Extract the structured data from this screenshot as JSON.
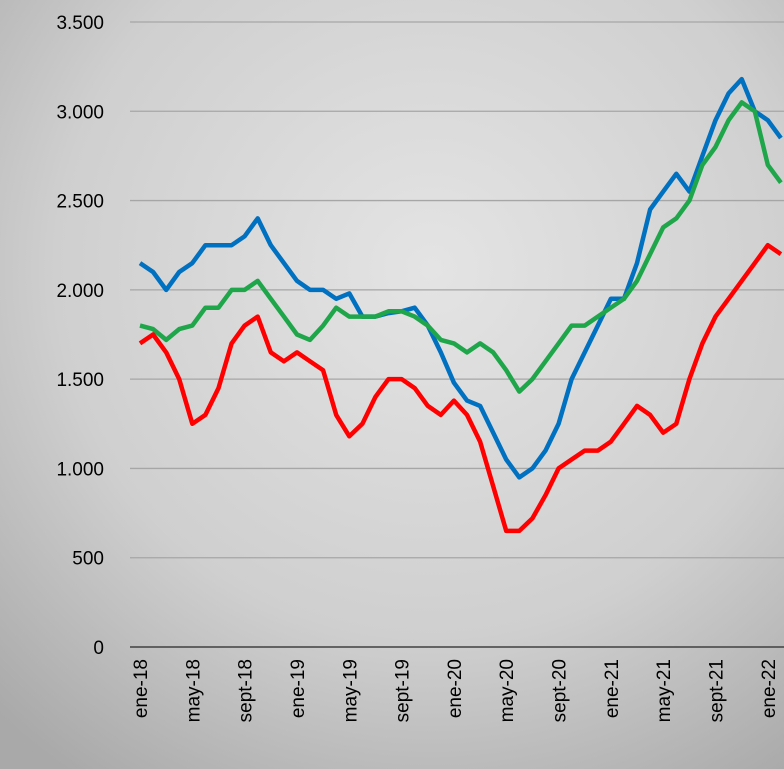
{
  "chart_data": {
    "type": "line",
    "categories": [
      "ene-18",
      null,
      null,
      null,
      "may-18",
      null,
      null,
      null,
      "sept-18",
      null,
      null,
      null,
      "ene-19",
      null,
      null,
      null,
      "may-19",
      null,
      null,
      null,
      "sept-19",
      null,
      null,
      null,
      "ene-20",
      null,
      null,
      null,
      "may-20",
      null,
      null,
      null,
      "sept-20",
      null,
      null,
      null,
      "ene-21",
      null,
      null,
      null,
      "may-21",
      null,
      null,
      null,
      "sept-21",
      null,
      null,
      null,
      "ene-22",
      null
    ],
    "series": [
      {
        "color": "#0070c0",
        "values": [
          2150,
          2100,
          2000,
          2100,
          2150,
          2250,
          2250,
          2250,
          2300,
          2400,
          2250,
          2150,
          2050,
          2000,
          2000,
          1950,
          1980,
          1850,
          1850,
          1870,
          1880,
          1900,
          1800,
          1650,
          1480,
          1380,
          1350,
          1200,
          1050,
          950,
          1000,
          1100,
          1250,
          1500,
          1650,
          1800,
          1950,
          1950,
          2150,
          2450,
          2550,
          2650,
          2550,
          2750,
          2950,
          3100,
          3180,
          3000,
          2950,
          2850
        ]
      },
      {
        "color": "#1fa64a",
        "values": [
          1800,
          1780,
          1720,
          1780,
          1800,
          1900,
          1900,
          2000,
          2000,
          2050,
          1950,
          1850,
          1750,
          1720,
          1800,
          1900,
          1850,
          1850,
          1850,
          1880,
          1880,
          1850,
          1800,
          1720,
          1700,
          1650,
          1700,
          1650,
          1550,
          1430,
          1500,
          1600,
          1700,
          1800,
          1800,
          1850,
          1900,
          1950,
          2050,
          2200,
          2350,
          2400,
          2500,
          2700,
          2800,
          2950,
          3050,
          3000,
          2700,
          2600
        ]
      },
      {
        "color": "#ff0000",
        "values": [
          1700,
          1750,
          1650,
          1500,
          1250,
          1300,
          1450,
          1700,
          1800,
          1850,
          1650,
          1600,
          1650,
          1600,
          1550,
          1300,
          1180,
          1250,
          1400,
          1500,
          1500,
          1450,
          1350,
          1300,
          1380,
          1300,
          1150,
          900,
          650,
          650,
          720,
          850,
          1000,
          1050,
          1100,
          1100,
          1150,
          1250,
          1350,
          1300,
          1200,
          1250,
          1500,
          1700,
          1850,
          1950,
          2050,
          2150,
          2250,
          2200
        ]
      }
    ],
    "ylim": [
      0,
      3500
    ],
    "yticks": [
      0,
      500,
      {
        "value": 1000,
        "label": "1.000"
      },
      {
        "value": 1500,
        "label": "1.500"
      },
      {
        "value": 2000,
        "label": "2.000"
      },
      {
        "value": 2500,
        "label": "2.500"
      },
      {
        "value": 3000,
        "label": "3.000"
      },
      {
        "value": 3500,
        "label": "3.500"
      }
    ],
    "grid": true
  }
}
